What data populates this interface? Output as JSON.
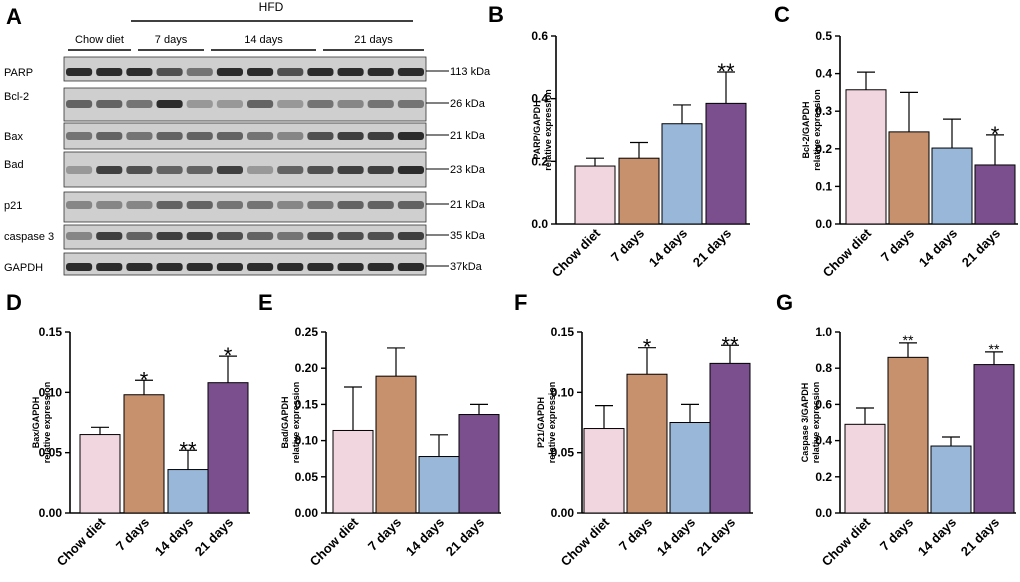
{
  "western_blot": {
    "panel_letter": "A",
    "hfd_label": "HFD",
    "group_labels": [
      "Chow diet",
      "7 days",
      "14 days",
      "21 days"
    ],
    "rows": [
      {
        "protein": "PARP",
        "size": "113 kDa"
      },
      {
        "protein": "Bcl-2",
        "size": "26 kDa"
      },
      {
        "protein": "Bax",
        "size": "21 kDa"
      },
      {
        "protein": "Bad",
        "size": "23 kDa"
      },
      {
        "protein": "p21",
        "size": "21 kDa"
      },
      {
        "protein": "caspase 3",
        "size": "35 kDa"
      },
      {
        "protein": "GAPDH",
        "size": "37kDa"
      }
    ]
  },
  "colors": {
    "chow": "#f2d6df",
    "d7": "#c8916e",
    "d14": "#99b7d9",
    "d21": "#7b4f8e",
    "axis": "#000000",
    "blot_bg": "#cfcfcf",
    "band": "#1a1a1a"
  },
  "chart_data": [
    {
      "panel": "B",
      "type": "bar",
      "categories": [
        "Chow diet",
        "7 days",
        "14 days",
        "21  days"
      ],
      "values": [
        0.185,
        0.21,
        0.32,
        0.385
      ],
      "errors": [
        0.025,
        0.05,
        0.06,
        0.1
      ],
      "significance": [
        "",
        "",
        "",
        "**"
      ],
      "ylabel": [
        "PARP/GAPDH",
        "relative expression"
      ],
      "ylim": [
        0,
        0.6
      ],
      "ticks": [
        0.0,
        0.2,
        0.4,
        0.6
      ],
      "tick_labels": [
        "0.0",
        "0.2",
        "0.4",
        "0.6"
      ]
    },
    {
      "panel": "C",
      "type": "bar",
      "categories": [
        "Chow diet",
        "7 days",
        "14 days",
        "21  days"
      ],
      "values": [
        0.357,
        0.245,
        0.202,
        0.157
      ],
      "errors": [
        0.047,
        0.105,
        0.077,
        0.08
      ],
      "significance": [
        "",
        "",
        "",
        "*"
      ],
      "ylabel": [
        "Bcl-2/GAPDH",
        "relative expression"
      ],
      "ylim": [
        0,
        0.5
      ],
      "ticks": [
        0.0,
        0.1,
        0.2,
        0.3,
        0.4,
        0.5
      ],
      "tick_labels": [
        "0.0",
        "0.1",
        "0.2",
        "0.3",
        "0.4",
        "0.5"
      ]
    },
    {
      "panel": "D",
      "type": "bar",
      "categories": [
        "Chow diet",
        "7 days",
        "14 days",
        "21  days"
      ],
      "values": [
        0.065,
        0.098,
        0.036,
        0.108
      ],
      "errors": [
        0.006,
        0.012,
        0.016,
        0.022
      ],
      "significance": [
        "",
        "*",
        "**",
        "*"
      ],
      "ylabel": [
        "Bax/GAPDH",
        "relative expression"
      ],
      "ylim": [
        0,
        0.15
      ],
      "ticks": [
        0.0,
        0.05,
        0.1,
        0.15
      ],
      "tick_labels": [
        "0.00",
        "0.05",
        "0.10",
        "0.15"
      ]
    },
    {
      "panel": "E",
      "type": "bar",
      "categories": [
        "Chow diet",
        "7 days",
        "14 days",
        "21  days"
      ],
      "values": [
        0.114,
        0.189,
        0.078,
        0.136
      ],
      "errors": [
        0.06,
        0.039,
        0.03,
        0.014
      ],
      "significance": [
        "",
        "",
        "",
        ""
      ],
      "ylabel": [
        "Bad/GAPDH",
        "relative expression"
      ],
      "ylim": [
        0,
        0.25
      ],
      "ticks": [
        0.0,
        0.05,
        0.1,
        0.15,
        0.2,
        0.25
      ],
      "tick_labels": [
        "0.00",
        "0.05",
        "0.10",
        "0.15",
        "0.20",
        "0.25"
      ]
    },
    {
      "panel": "F",
      "type": "bar",
      "categories": [
        "Chow diet",
        "7 days",
        "14 days",
        "21  days"
      ],
      "values": [
        0.07,
        0.115,
        0.075,
        0.124
      ],
      "errors": [
        0.019,
        0.022,
        0.015,
        0.015
      ],
      "significance": [
        "",
        "*",
        "",
        "**"
      ],
      "ylabel": [
        "P21/GAPDH",
        "relative expression"
      ],
      "ylim": [
        0,
        0.15
      ],
      "ticks": [
        0.0,
        0.05,
        0.1,
        0.15
      ],
      "tick_labels": [
        "0.00",
        "0.05",
        "0.10",
        "0.15"
      ]
    },
    {
      "panel": "G",
      "type": "bar",
      "categories": [
        "Chow diet",
        "7 days",
        "14 days",
        "21  days"
      ],
      "values": [
        0.49,
        0.86,
        0.37,
        0.82
      ],
      "errors": [
        0.09,
        0.08,
        0.05,
        0.07
      ],
      "significance": [
        "",
        "**",
        "",
        "**"
      ],
      "ylabel": [
        "Caspase 3/GAPDH",
        "relative expression"
      ],
      "ylim": [
        0,
        1.0
      ],
      "ticks": [
        0.0,
        0.2,
        0.4,
        0.6,
        0.8,
        1.0
      ],
      "tick_labels": [
        "0.0",
        "0.2",
        "0.4",
        "0.6",
        "0.8",
        "1.0"
      ]
    }
  ]
}
